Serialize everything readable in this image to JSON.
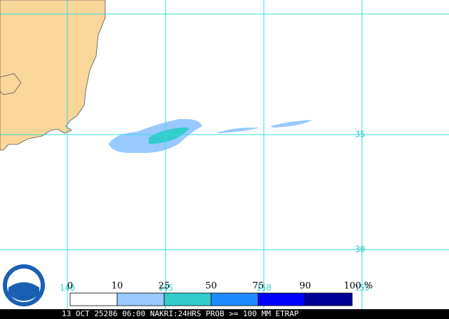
{
  "map": {
    "caption": "13 OCT 25286 06:00 NAKRI:24HRS PROB >= 100 MM ETRAP",
    "logo": "NOAA",
    "lat_labels": [
      "35",
      "30"
    ],
    "lon_labels": [
      "140",
      "145",
      "150",
      "155"
    ],
    "legend": {
      "labels": [
        "0",
        "10",
        "25",
        "50",
        "75",
        "90",
        "100 %"
      ],
      "colors": [
        "#ffffff",
        "#99c9ff",
        "#33cccc",
        "#1e8cff",
        "#0000ff",
        "#000099"
      ]
    }
  }
}
